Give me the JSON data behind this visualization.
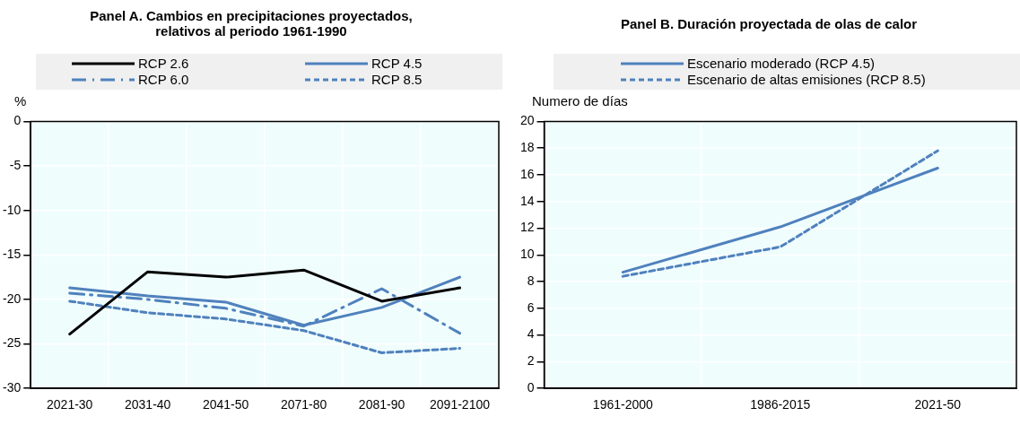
{
  "chart_data": [
    {
      "type": "line",
      "title": "Panel A. Cambios en precipitaciones proyectados, relativos al periodo 1961-1990",
      "ylabel": "%",
      "categories": [
        "2021-30",
        "2031-40",
        "2041-50",
        "2071-80",
        "2081-90",
        "2091-2100"
      ],
      "series": [
        {
          "name": "RCP 2.6",
          "color": "#000000",
          "line_style": "solid",
          "values": [
            -23.9,
            -16.9,
            -17.5,
            -16.7,
            -20.2,
            -18.7
          ]
        },
        {
          "name": "RCP 4.5",
          "color": "#4f81bd",
          "line_style": "solid",
          "values": [
            -18.7,
            -19.6,
            -20.3,
            -22.9,
            -20.9,
            -17.5
          ]
        },
        {
          "name": "RCP 6.0",
          "color": "#4f81bd",
          "line_style": "dashdot",
          "values": [
            -19.3,
            -20.0,
            -21.0,
            -23.0,
            -18.8,
            -23.8
          ]
        },
        {
          "name": "RCP 8.5",
          "color": "#4f81bd",
          "line_style": "dashed",
          "values": [
            -20.2,
            -21.5,
            -22.2,
            -23.5,
            -26.0,
            -25.5
          ]
        }
      ],
      "ylim": [
        -30,
        0
      ],
      "yticks": [
        -30,
        -25,
        -20,
        -15,
        -10,
        -5,
        0
      ],
      "grid": true,
      "legend": "top"
    },
    {
      "type": "line",
      "title": "Panel B.  Duración proyectada de olas de calor",
      "ylabel": "Numero de días",
      "categories": [
        "1961-2000",
        "1986-2015",
        "2021-50"
      ],
      "series": [
        {
          "name": "Escenario moderado (RCP 4.5)",
          "color": "#4f81bd",
          "line_style": "solid",
          "values": [
            8.7,
            12.1,
            16.5
          ]
        },
        {
          "name": "Escenario de altas emisiones (RCP 8.5)",
          "color": "#4f81bd",
          "line_style": "dashed",
          "values": [
            8.4,
            10.6,
            17.8
          ]
        }
      ],
      "ylim": [
        0,
        20
      ],
      "yticks": [
        0,
        2,
        4,
        6,
        8,
        10,
        12,
        14,
        16,
        18,
        20
      ],
      "grid": true,
      "legend": "top"
    }
  ]
}
